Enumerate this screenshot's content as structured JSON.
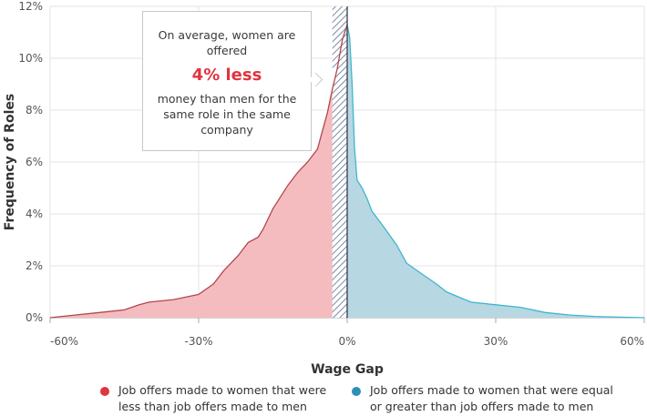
{
  "chart_data": {
    "type": "area",
    "xlabel": "Wage Gap",
    "ylabel": "Frequency of Roles",
    "xlim": [
      -60,
      60
    ],
    "ylim": [
      0,
      12
    ],
    "x_ticks": [
      "-60%",
      "-30%",
      "0%",
      "30%",
      "60%"
    ],
    "y_ticks": [
      "0%",
      "2%",
      "4%",
      "6%",
      "8%",
      "10%",
      "12%"
    ],
    "series": [
      {
        "name": "Job offers made to women that were less than job offers made to men",
        "color": "#f5bcc0",
        "line_color": "#b2474f",
        "x": [
          -60,
          -55,
          -50,
          -45,
          -42,
          -40,
          -35,
          -30,
          -27,
          -25,
          -22,
          -20,
          -18,
          -17,
          -15,
          -13,
          -12,
          -10,
          -8,
          -6,
          -5,
          -4,
          -3,
          -2,
          -1,
          0
        ],
        "y": [
          0.0,
          0.1,
          0.2,
          0.3,
          0.5,
          0.6,
          0.7,
          0.9,
          1.3,
          1.8,
          2.4,
          2.9,
          3.1,
          3.4,
          4.2,
          4.8,
          5.1,
          5.6,
          6.0,
          6.5,
          7.2,
          7.9,
          8.8,
          9.6,
          10.7,
          11.3
        ]
      },
      {
        "name": "Job offers made to women that were equal or greater than job offers made to men",
        "color": "#b7d7e3",
        "line_color": "#3fb6cd",
        "x": [
          0,
          0.5,
          1,
          1.5,
          2,
          3,
          4,
          5,
          7,
          10,
          12,
          15,
          18,
          20,
          25,
          30,
          35,
          40,
          45,
          50,
          55,
          60
        ],
        "y": [
          11.3,
          10.8,
          9.0,
          6.5,
          5.3,
          5.0,
          4.6,
          4.1,
          3.6,
          2.8,
          2.1,
          1.7,
          1.3,
          1.0,
          0.6,
          0.5,
          0.4,
          0.2,
          0.1,
          0.05,
          0.02,
          0.0
        ]
      }
    ],
    "hatch_region": [
      -3,
      0
    ],
    "grid": true,
    "legend_position": "bottom"
  },
  "callout": {
    "line1": "On average, women are offered",
    "highlight": "4% less",
    "line2": "money than men for the same role in the same company"
  },
  "legend": [
    {
      "label": "Job offers made to women that were less than job offers made to men",
      "color": "#e0343f"
    },
    {
      "label": "Job offers made to women that were equal or greater than job offers made to men",
      "color": "#2e8fb8"
    }
  ]
}
